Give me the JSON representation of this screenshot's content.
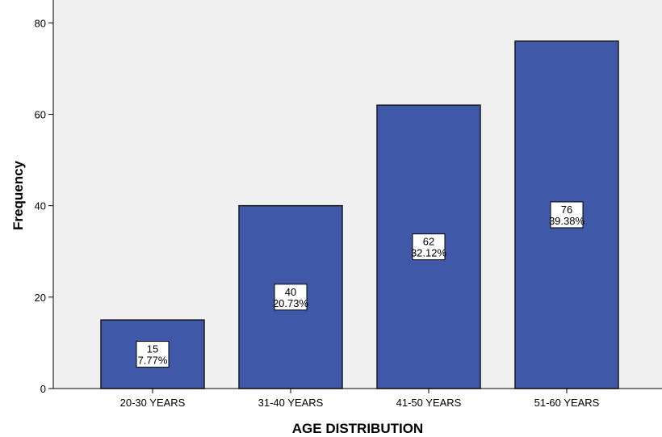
{
  "chart_data": {
    "type": "bar",
    "title": "",
    "xlabel": "AGE DISTRIBUTION",
    "ylabel": "Frequency",
    "categories": [
      "20-30 YEARS",
      "31-40 YEARS",
      "41-50 YEARS",
      "51-60 YEARS"
    ],
    "values": [
      15,
      40,
      62,
      76
    ],
    "percent_labels": [
      "7.77%",
      "20.73%",
      "32.12%",
      "39.38%"
    ],
    "count_labels": [
      "15",
      "40",
      "62",
      "76"
    ],
    "ylim": [
      0,
      85
    ],
    "yticks": [
      0,
      20,
      40,
      60,
      80
    ],
    "ytick_labels": [
      "0",
      "20",
      "40",
      "60",
      "80"
    ],
    "grid": false,
    "legend": "none",
    "colors": {
      "bar_fill": "#3F58A8",
      "bar_stroke": "#1a1a1a",
      "plot_background": "#F0F0F0",
      "axis": "#000000",
      "label_box": "#FFFFFF"
    }
  }
}
